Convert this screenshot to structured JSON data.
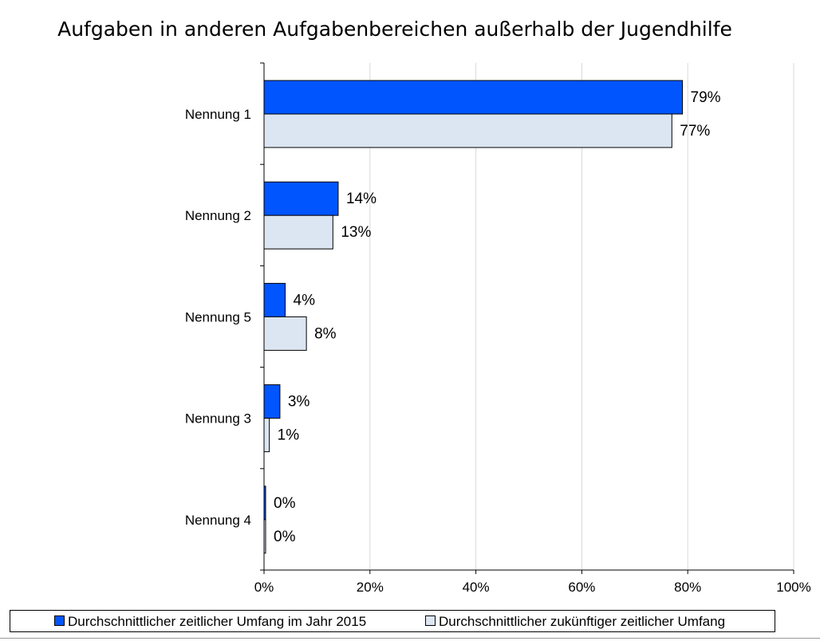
{
  "chart_data": {
    "type": "bar",
    "orientation": "horizontal",
    "title": "Aufgaben in anderen Aufgabenbereichen außerhalb der Jugendhilfe",
    "categories": [
      "Nennung 1",
      "Nennung 2",
      "Nennung 5",
      "Nennung 3",
      "Nennung 4"
    ],
    "series": [
      {
        "name": "Durchschnittlicher zeitlicher Umfang im Jahr 2015",
        "color": "#0055ff",
        "values": [
          79,
          14,
          4,
          3,
          0
        ],
        "labels": [
          "79%",
          "14%",
          "4%",
          "3%",
          "0%"
        ]
      },
      {
        "name": "Durchschnittlicher zukünftiger zeitlicher Umfang",
        "color": "#dce6f2",
        "values": [
          77,
          13,
          8,
          1,
          0
        ],
        "labels": [
          "77%",
          "13%",
          "8%",
          "1%",
          "0%"
        ]
      }
    ],
    "xlim": [
      0,
      100
    ],
    "xticks": [
      "0%",
      "20%",
      "40%",
      "60%",
      "80%",
      "100%"
    ],
    "xlabel": "",
    "ylabel": "",
    "grid": true,
    "legend": "bottom"
  }
}
